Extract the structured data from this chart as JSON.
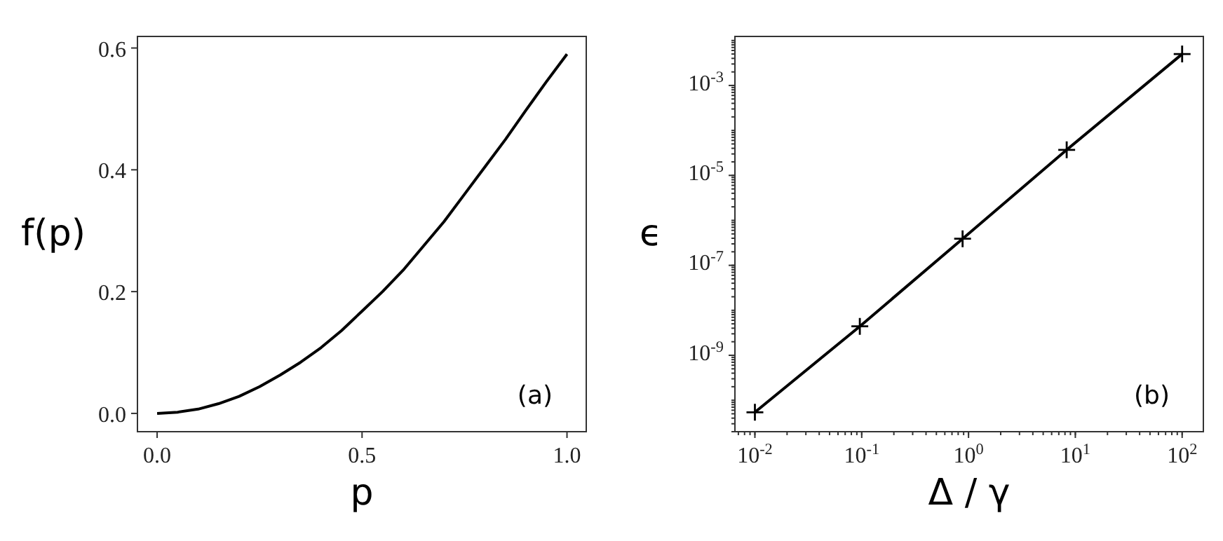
{
  "chart_data": [
    {
      "type": "line",
      "xlabel": "p",
      "ylabel": "f(p)",
      "annotations": [
        "(a)"
      ],
      "xlim": [
        -0.048,
        1.047
      ],
      "ylim": [
        -0.03,
        0.619
      ],
      "xticks": [
        {
          "value": 0,
          "label": "0.0"
        },
        0.5,
        {
          "value": 1,
          "label": "1.0"
        }
      ],
      "yticks": [
        {
          "value": 0,
          "label": "0.0"
        },
        0.2,
        0.4,
        0.6
      ],
      "grid": false,
      "marker": "none",
      "line_style": "solid",
      "series": [
        {
          "color": "#000000",
          "x": [
            0,
            0.05,
            0.1,
            0.15,
            0.2,
            0.25,
            0.3,
            0.35,
            0.4,
            0.45,
            0.5,
            0.55,
            0.6,
            0.65,
            0.7,
            0.75,
            0.8,
            0.85,
            0.9,
            0.95,
            1.0
          ],
          "values": [
            0,
            0.002,
            0.007,
            0.016,
            0.028,
            0.044,
            0.063,
            0.084,
            0.108,
            0.136,
            0.168,
            0.2,
            0.235,
            0.275,
            0.315,
            0.36,
            0.405,
            0.45,
            0.498,
            0.545,
            0.59
          ]
        }
      ]
    },
    {
      "type": "line",
      "xlabel": "Δ / γ",
      "ylabel": "ϵ",
      "annotations": [
        "(b)"
      ],
      "log": "xy",
      "xlim": [
        0.0065,
        158
      ],
      "ylim": [
        2e-11,
        0.0123
      ],
      "xticks": [
        {
          "value": 0.01,
          "label": "10$^{-2}$"
        },
        {
          "value": 0.1,
          "label": "10$^{-1}$"
        },
        {
          "value": 1,
          "label": "10$^{0}$"
        },
        {
          "value": 10,
          "label": "10$^{1}$"
        },
        {
          "value": 100,
          "label": "10$^{2}$"
        }
      ],
      "yticks": [
        {
          "value": 1e-09,
          "label": "10$^{-9}$"
        },
        {
          "value": 1e-07,
          "label": "10$^{-7}$"
        },
        {
          "value": 1e-05,
          "label": "10$^{-5}$"
        },
        {
          "value": 0.001,
          "label": "10$^{-3}$"
        }
      ],
      "grid": false,
      "marker": "cross",
      "line_style": "solid",
      "series": [
        {
          "color": "#000000",
          "x": [
            0.01,
            0.096,
            0.88,
            8.3,
            100
          ],
          "values": [
            5.4e-11,
            4.4e-09,
            3.9e-07,
            3.7e-05,
            0.005
          ]
        }
      ]
    }
  ]
}
